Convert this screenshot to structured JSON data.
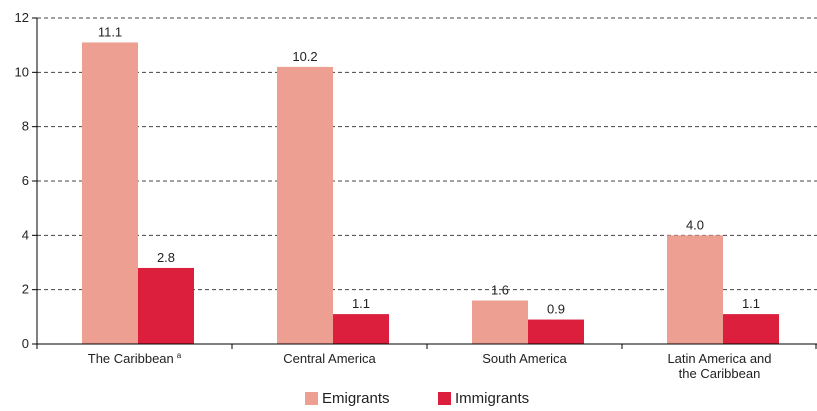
{
  "chart_data": {
    "type": "bar",
    "categories": [
      "The Caribbean",
      "Central America",
      "South America",
      "Latin America and the Caribbean"
    ],
    "category_footnote": [
      "a",
      "",
      "",
      ""
    ],
    "series": [
      {
        "name": "Emigrants",
        "values": [
          11.1,
          10.2,
          1.6,
          4.0
        ],
        "labels": [
          "11.1",
          "10.2",
          "1.6",
          "4.0"
        ],
        "color": "#ed9f92"
      },
      {
        "name": "Immigrants",
        "values": [
          2.8,
          1.1,
          0.9,
          1.1
        ],
        "labels": [
          "2.8",
          "1.1",
          "0.9",
          "1.1"
        ],
        "color": "#db1f3d"
      }
    ],
    "yticks": [
      "0",
      "2",
      "4",
      "6",
      "8",
      "10",
      "12"
    ],
    "ylim": [
      0,
      12
    ],
    "grid": true,
    "legend_position": "bottom"
  }
}
